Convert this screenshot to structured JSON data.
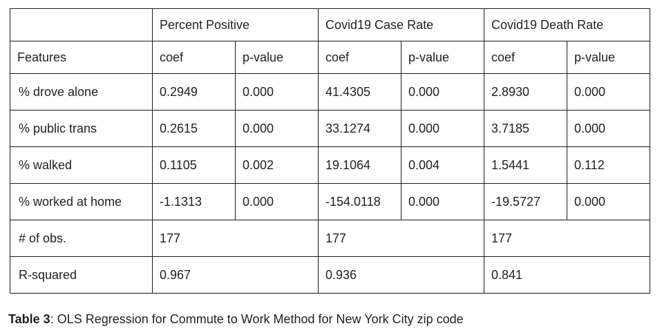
{
  "table": {
    "group_headers": [
      "",
      "Percent Positive",
      "Covid19 Case Rate",
      "Covid19 Death Rate"
    ],
    "sub_headers": [
      "Features",
      "coef",
      "p-value",
      "coef",
      "p-value",
      "coef",
      "p-value"
    ],
    "rows": [
      {
        "feature": "% drove alone",
        "values": [
          "0.2949",
          "0.000",
          "41.4305",
          "0.000",
          "2.8930",
          "0.000"
        ]
      },
      {
        "feature": "% public trans",
        "values": [
          "0.2615",
          "0.000",
          "33.1274",
          "0.000",
          "3.7185",
          "0.000"
        ]
      },
      {
        "feature": "% walked",
        "values": [
          "0.1105",
          "0.002",
          "19.1064",
          "0.004",
          "1.5441",
          "0.112"
        ]
      },
      {
        "feature": "% worked at home",
        "values": [
          "-1.1313",
          "0.000",
          "-154.0118",
          "0.000",
          "-19.5727",
          "0.000"
        ]
      }
    ],
    "summary_rows": [
      {
        "label": "# of obs.",
        "values": [
          "177",
          "177",
          "177"
        ]
      },
      {
        "label": "R-squared",
        "values": [
          "0.967",
          "0.936",
          "0.841"
        ]
      }
    ]
  },
  "caption": {
    "label": "Table 3",
    "text": ": OLS Regression for Commute to Work Method for New York City zip code"
  }
}
